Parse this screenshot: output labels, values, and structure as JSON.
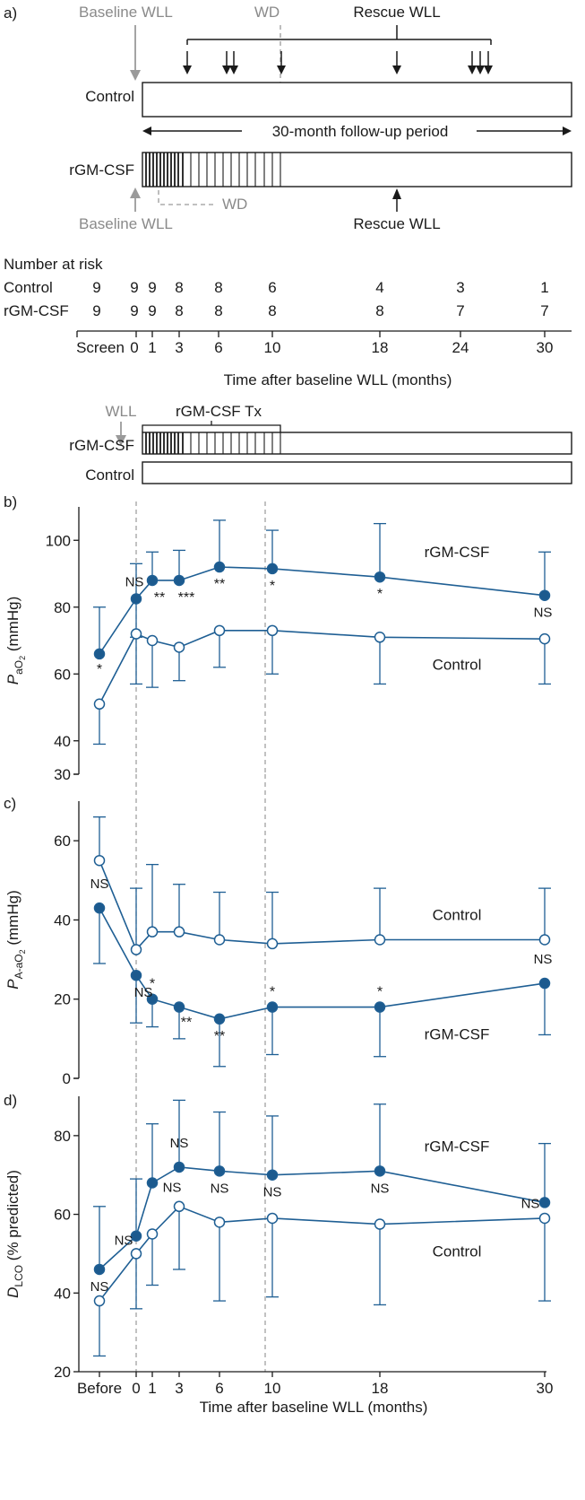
{
  "colors": {
    "series": "#1f5f94",
    "filled": "#1c5a8e",
    "grey": "#9a9a9a",
    "text": "#1a1a1a"
  },
  "panel_a": {
    "label": "a)",
    "baseline_wll": "Baseline WLL",
    "wd": "WD",
    "rescue_wll": "Rescue WLL",
    "control": "Control",
    "rgmcsf": "rGM-CSF",
    "followup": "30-month follow-up period",
    "risk_title": "Number at risk",
    "risk_rows": [
      {
        "name": "Control",
        "values": [
          "9",
          "9",
          "9",
          "8",
          "8",
          "6",
          "4",
          "3",
          "1"
        ]
      },
      {
        "name": "rGM-CSF",
        "values": [
          "9",
          "9",
          "9",
          "8",
          "8",
          "8",
          "8",
          "7",
          "7"
        ]
      }
    ],
    "axis_ticks": [
      "Screen",
      "0",
      "1",
      "3",
      "6",
      "10",
      "18",
      "24",
      "30"
    ],
    "axis_label": "Time after baseline WLL (months)",
    "schema_wll": "WLL",
    "schema_tx": "rGM-CSF Tx",
    "schema_rgmcsf": "rGM-CSF",
    "schema_control": "Control"
  },
  "chart_data": [
    {
      "type": "line",
      "panel": "b)",
      "ylabel_main": "P",
      "ylabel_sub": "aO",
      "ylabel_sub2": "2",
      "ylabel_unit": "(mmHg)",
      "ylim": [
        30,
        110
      ],
      "yticks": [
        "100",
        "80",
        "60",
        "40",
        "30"
      ],
      "x_categories": [
        "Before",
        "0",
        "1",
        "3",
        "6",
        "10",
        "18",
        "30"
      ],
      "series": [
        {
          "name": "rGM-CSF",
          "marker": "filled",
          "values": [
            66,
            82.5,
            88,
            88,
            92,
            91.5,
            89,
            83.5
          ],
          "upper": [
            80,
            93,
            96.5,
            97,
            106,
            103,
            105,
            96.5
          ],
          "lower": [
            null,
            71,
            null,
            null,
            null,
            null,
            null,
            null
          ],
          "annotations": [
            "*",
            "NS",
            "**",
            "***",
            "**",
            "*",
            "*",
            "NS"
          ]
        },
        {
          "name": "Control",
          "marker": "open",
          "values": [
            51,
            72,
            70,
            68,
            73,
            73,
            71,
            70.5
          ],
          "upper": [
            null,
            null,
            null,
            null,
            null,
            null,
            null,
            null
          ],
          "lower": [
            39,
            57,
            56,
            58,
            62,
            60,
            57,
            57
          ]
        }
      ]
    },
    {
      "type": "line",
      "panel": "c)",
      "ylabel_main": "P",
      "ylabel_sub": "A-aO",
      "ylabel_sub2": "2",
      "ylabel_unit": "(mmHg)",
      "ylim": [
        0,
        70
      ],
      "yticks": [
        "60",
        "40",
        "20",
        "0"
      ],
      "x_categories": [
        "Before",
        "0",
        "1",
        "3",
        "6",
        "10",
        "18",
        "30"
      ],
      "series": [
        {
          "name": "Control",
          "marker": "open",
          "values": [
            55,
            32.5,
            37,
            37,
            35,
            34,
            35,
            35
          ],
          "upper": [
            66,
            48,
            54,
            49,
            47,
            47,
            48,
            48
          ],
          "lower": [
            null,
            null,
            null,
            null,
            null,
            null,
            null,
            null
          ]
        },
        {
          "name": "rGM-CSF",
          "marker": "filled",
          "values": [
            43,
            26,
            20,
            18,
            15,
            18,
            18,
            24
          ],
          "upper": [
            null,
            null,
            null,
            null,
            null,
            null,
            null,
            null
          ],
          "lower": [
            29,
            14,
            13,
            10,
            3,
            6,
            5.5,
            11
          ],
          "annotations": [
            "NS",
            "NS",
            "*",
            "**",
            "**",
            "*",
            "*",
            "NS"
          ]
        }
      ]
    },
    {
      "type": "line",
      "panel": "d)",
      "ylabel_main": "D",
      "ylabel_sub": "LCO",
      "ylabel_sub2": "",
      "ylabel_unit": "(% predicted)",
      "ylim": [
        20,
        90
      ],
      "yticks": [
        "80",
        "60",
        "40",
        "20"
      ],
      "x_categories": [
        "Before",
        "0",
        "1",
        "3",
        "6",
        "10",
        "18",
        "30"
      ],
      "xlabel": "Time after baseline WLL (months)",
      "series": [
        {
          "name": "rGM-CSF",
          "marker": "filled",
          "values": [
            46,
            54.5,
            68,
            72,
            71,
            70,
            71,
            63
          ],
          "upper": [
            62,
            69,
            83,
            89,
            86,
            85,
            88,
            78
          ],
          "lower": [
            null,
            null,
            null,
            null,
            null,
            null,
            null,
            null
          ],
          "annotations": [
            "NS",
            "NS",
            "NS",
            "NS",
            "NS",
            "NS",
            "NS",
            "NS"
          ]
        },
        {
          "name": "Control",
          "marker": "open",
          "values": [
            38,
            50,
            55,
            62,
            58,
            59,
            57.5,
            59
          ],
          "upper": [
            null,
            null,
            null,
            null,
            null,
            null,
            null,
            null
          ],
          "lower": [
            24,
            36,
            42,
            46,
            38,
            39,
            37,
            38
          ]
        }
      ]
    }
  ]
}
